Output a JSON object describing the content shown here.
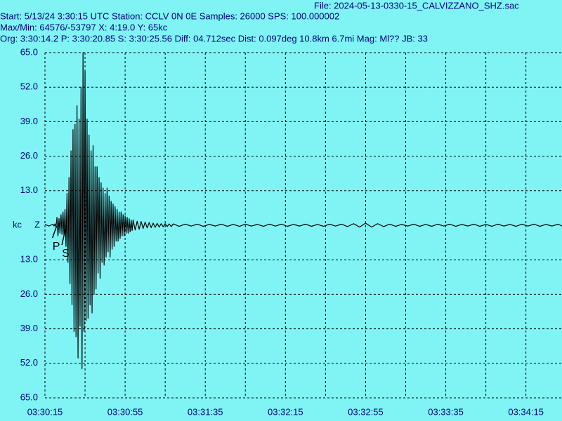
{
  "chart_data": {
    "type": "line",
    "title": "File: 2024-05-13-0330-15_CALVIZZANO_SHZ.sac",
    "subtitle": [
      "Start: 5/13/24  3:30:15 UTC Station: CCLV 0N 0E Samples: 26000  SPS: 100.000002",
      "Max/Min: 64576/-53797 X: 4:19.0 Y: 65kc",
      "Org: 3:30:14.2 P: 3:30:20.85 S: 3:30:25.56 Diff: 04.712sec Dist: 0.097deg 10.8km 6.7mi  Mag: Ml?? JB: 33"
    ],
    "y_label": "kc",
    "channel": "Z",
    "color": "#000000",
    "grid": true,
    "xlim": [
      0,
      258
    ],
    "ylim": [
      -65,
      65
    ],
    "xticks": [
      {
        "value": 0,
        "label": "03:30:15"
      },
      {
        "value": 40,
        "label": "03:30:55"
      },
      {
        "value": 80,
        "label": "03:31:35"
      },
      {
        "value": 120,
        "label": "03:32:15"
      },
      {
        "value": 160,
        "label": "03:32:55"
      },
      {
        "value": 200,
        "label": "03:33:35"
      },
      {
        "value": 240,
        "label": "03:34:15"
      }
    ],
    "xminorticks": [
      20,
      60,
      100,
      140,
      180,
      220
    ],
    "yticks": [
      {
        "value": 65,
        "label": "65.0"
      },
      {
        "value": 52,
        "label": "52.0"
      },
      {
        "value": 39,
        "label": "39.0"
      },
      {
        "value": 26,
        "label": "26.0"
      },
      {
        "value": 13,
        "label": "13.0"
      },
      {
        "value": -13,
        "label": "13.0"
      },
      {
        "value": -26,
        "label": "26.0"
      },
      {
        "value": -39,
        "label": "39.0"
      },
      {
        "value": -52,
        "label": "52.0"
      },
      {
        "value": -65,
        "label": "65.0"
      }
    ],
    "annotations": [
      {
        "label": "P",
        "x": 5.85
      },
      {
        "label": "S",
        "x": 10.56
      }
    ],
    "x": [
      0,
      2,
      4,
      4.5,
      5,
      5.5,
      6,
      6.5,
      7,
      7.5,
      8,
      8.5,
      9,
      9.5,
      10,
      10.5,
      11,
      11.5,
      12,
      12.5,
      13,
      13.5,
      14,
      14.5,
      15,
      15.5,
      16,
      16.5,
      17,
      17.5,
      18,
      18.5,
      19,
      19.5,
      20,
      20.5,
      21,
      21.5,
      22,
      22.5,
      23,
      23.5,
      24,
      24.5,
      25,
      25.5,
      26,
      26.5,
      27,
      27.5,
      28,
      28.5,
      29,
      29.5,
      30,
      30.5,
      31,
      31.5,
      32,
      32.5,
      33,
      33.5,
      34,
      34.5,
      35,
      35.5,
      36,
      36.5,
      37,
      37.5,
      38,
      38.5,
      39,
      39.5,
      40,
      40.5,
      41,
      41.5,
      42,
      42.5,
      43,
      43.5,
      44,
      45,
      46,
      47,
      48,
      49,
      50,
      51,
      52,
      53,
      54,
      55,
      56,
      57,
      58,
      59,
      60,
      61,
      62,
      63,
      64,
      67,
      70,
      73,
      76,
      79,
      82,
      85,
      88,
      91,
      94,
      97,
      100,
      103,
      106,
      109,
      112,
      115,
      118,
      121,
      124,
      127,
      130,
      133,
      136,
      139,
      142,
      145,
      148,
      151,
      154,
      157,
      160,
      163,
      166,
      169,
      172,
      175,
      178,
      181,
      184,
      187,
      190,
      193,
      196,
      199,
      202,
      205,
      208,
      211,
      214,
      217,
      220,
      223,
      226,
      229,
      232,
      235,
      238,
      241,
      244,
      247,
      250,
      253,
      256,
      258
    ],
    "values": [
      0.3,
      -0.3,
      0.4,
      -0.3,
      0.5,
      -0.6,
      3,
      -4,
      2.5,
      -3,
      4,
      -3.5,
      5,
      -4,
      6,
      -8,
      12,
      -14,
      18,
      -22,
      28,
      -30,
      36,
      -40,
      38,
      -42,
      45,
      -50,
      40,
      -38,
      52,
      -54,
      65,
      -40,
      58,
      -36,
      40,
      -35,
      34,
      -30,
      28,
      -33,
      30,
      -26,
      22,
      -24,
      22,
      -18,
      18,
      -20,
      16,
      -14,
      14,
      -15,
      12,
      -12,
      14,
      -10,
      11,
      -12,
      9,
      -9,
      8,
      -8,
      7,
      -6,
      6,
      -6,
      5,
      -5,
      5,
      -4,
      4,
      -4,
      3.5,
      -3,
      3,
      -3,
      2.5,
      -2.5,
      2,
      -2,
      2,
      -1.8,
      1.5,
      -1.5,
      1.4,
      -1.2,
      1.2,
      -1,
      1,
      -0.9,
      0.8,
      -0.8,
      0.7,
      -0.7,
      0.6,
      -0.6,
      0.6,
      -0.5,
      0.5,
      -0.5,
      0.5,
      -0.4,
      0.4,
      -0.3,
      0.4,
      -0.4,
      0.3,
      -0.3,
      0.4,
      -0.4,
      0.3,
      -0.4,
      0.4,
      -0.3,
      0.3,
      -0.4,
      0.4,
      -0.3,
      0.4,
      -0.4,
      0.3,
      -0.3,
      0.4,
      -0.4,
      0.3,
      -0.4,
      0.4,
      -0.3,
      0.4,
      -0.5,
      0.6,
      -0.7,
      0.8,
      -0.7,
      0.6,
      -0.5,
      0.4,
      -0.4,
      0.3,
      -0.3,
      0.4,
      -0.4,
      0.3,
      -0.4,
      0.4,
      -0.3,
      0.4,
      -0.4,
      0.3,
      -0.3,
      0.4,
      -0.4,
      0.3,
      -0.4,
      0.4,
      -0.3,
      0.3,
      -0.4,
      0.4,
      -0.3,
      0.4,
      -0.4,
      0.3,
      -0.3,
      0.4,
      -0.3
    ]
  }
}
